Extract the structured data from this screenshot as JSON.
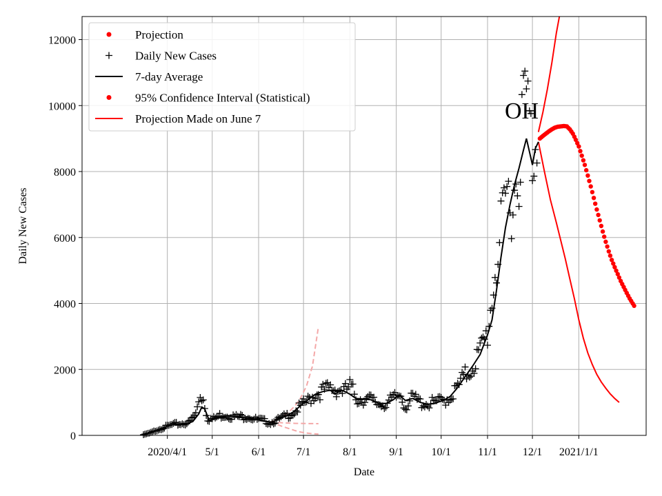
{
  "chart_data": {
    "type": "line",
    "title": "",
    "xlabel": "Date",
    "ylabel": "Daily New Cases",
    "annotation": "OH",
    "grid": true,
    "legend_position": "top-left",
    "xlim": [
      -26,
      351
    ],
    "ylim": [
      0,
      12700
    ],
    "xticks": [
      {
        "day": 31,
        "label": "2020/4/1"
      },
      {
        "day": 61,
        "label": "5/1"
      },
      {
        "day": 92,
        "label": "6/1"
      },
      {
        "day": 122,
        "label": "7/1"
      },
      {
        "day": 153,
        "label": "8/1"
      },
      {
        "day": 184,
        "label": "9/1"
      },
      {
        "day": 214,
        "label": "10/1"
      },
      {
        "day": 245,
        "label": "11/1"
      },
      {
        "day": 275,
        "label": "12/1"
      },
      {
        "day": 306,
        "label": "2021/1/1"
      }
    ],
    "yticks": [
      0,
      2000,
      4000,
      6000,
      8000,
      10000,
      12000
    ],
    "legend": [
      {
        "label": "Projection",
        "marker": "dot",
        "color": "#ff0000"
      },
      {
        "label": "Daily New Cases",
        "marker": "plus",
        "color": "#000000"
      },
      {
        "label": "7-day Average",
        "marker": "line",
        "color": "#000000"
      },
      {
        "label": "95% Confidence Interval (Statistical)",
        "marker": "dot",
        "color": "#ff0000"
      },
      {
        "label": "Projection Made on June 7",
        "marker": "line",
        "color": "#ff0000"
      }
    ],
    "colors": {
      "cases": "#000000",
      "avg": "#000000",
      "projection": "#ff0000",
      "june": "#f4a8a8",
      "grid": "#b0b0b0"
    },
    "daily_new_cases": {
      "anchors": [
        [
          15,
          20
        ],
        [
          20,
          80
        ],
        [
          25,
          180
        ],
        [
          30,
          260
        ],
        [
          35,
          330
        ],
        [
          40,
          350
        ],
        [
          45,
          380
        ],
        [
          50,
          650
        ],
        [
          53,
          1250
        ],
        [
          55,
          1100
        ],
        [
          58,
          500
        ],
        [
          62,
          500
        ],
        [
          66,
          600
        ],
        [
          70,
          620
        ],
        [
          75,
          560
        ],
        [
          80,
          560
        ],
        [
          85,
          580
        ],
        [
          90,
          480
        ],
        [
          95,
          450
        ],
        [
          100,
          380
        ],
        [
          105,
          470
        ],
        [
          110,
          580
        ],
        [
          115,
          680
        ],
        [
          120,
          870
        ],
        [
          125,
          1050
        ],
        [
          130,
          1250
        ],
        [
          135,
          1350
        ],
        [
          140,
          1420
        ],
        [
          145,
          1400
        ],
        [
          150,
          1350
        ],
        [
          153,
          1500
        ],
        [
          158,
          1100
        ],
        [
          162,
          1100
        ],
        [
          167,
          1080
        ],
        [
          172,
          960
        ],
        [
          177,
          950
        ],
        [
          182,
          1100
        ],
        [
          187,
          1250
        ],
        [
          190,
          850
        ],
        [
          195,
          1150
        ],
        [
          200,
          1000
        ],
        [
          205,
          950
        ],
        [
          210,
          1000
        ],
        [
          215,
          1050
        ],
        [
          220,
          1150
        ],
        [
          225,
          1450
        ],
        [
          230,
          1800
        ],
        [
          235,
          2100
        ],
        [
          240,
          2500
        ],
        [
          245,
          3100
        ],
        [
          248,
          4200
        ],
        [
          250,
          5000
        ],
        [
          253,
          5800
        ],
        [
          256,
          6500
        ],
        [
          258,
          7300
        ],
        [
          262,
          7200
        ],
        [
          265,
          8000
        ],
        [
          268,
          9300
        ],
        [
          270,
          10300
        ],
        [
          272,
          9800
        ],
        [
          275,
          8500
        ],
        [
          278,
          9200
        ]
      ],
      "amplitude": 0.18
    },
    "seven_day_average": [
      [
        15,
        20
      ],
      [
        25,
        180
      ],
      [
        30,
        260
      ],
      [
        35,
        330
      ],
      [
        40,
        350
      ],
      [
        45,
        370
      ],
      [
        48,
        420
      ],
      [
        52,
        650
      ],
      [
        54,
        860
      ],
      [
        56,
        800
      ],
      [
        59,
        450
      ],
      [
        63,
        500
      ],
      [
        68,
        580
      ],
      [
        72,
        600
      ],
      [
        76,
        560
      ],
      [
        80,
        540
      ],
      [
        85,
        560
      ],
      [
        90,
        490
      ],
      [
        95,
        440
      ],
      [
        100,
        400
      ],
      [
        105,
        480
      ],
      [
        110,
        580
      ],
      [
        115,
        700
      ],
      [
        120,
        900
      ],
      [
        125,
        1080
      ],
      [
        130,
        1250
      ],
      [
        135,
        1330
      ],
      [
        140,
        1370
      ],
      [
        143,
        1250
      ],
      [
        147,
        1380
      ],
      [
        150,
        1320
      ],
      [
        153,
        1250
      ],
      [
        157,
        1120
      ],
      [
        162,
        1100
      ],
      [
        167,
        1080
      ],
      [
        172,
        980
      ],
      [
        177,
        960
      ],
      [
        182,
        1080
      ],
      [
        186,
        1230
      ],
      [
        190,
        1060
      ],
      [
        195,
        1120
      ],
      [
        200,
        1000
      ],
      [
        205,
        940
      ],
      [
        210,
        980
      ],
      [
        215,
        1050
      ],
      [
        220,
        1180
      ],
      [
        225,
        1450
      ],
      [
        230,
        1780
      ],
      [
        235,
        2100
      ],
      [
        240,
        2450
      ],
      [
        245,
        3050
      ],
      [
        248,
        3500
      ],
      [
        251,
        4400
      ],
      [
        254,
        5400
      ],
      [
        257,
        6300
      ],
      [
        260,
        7000
      ],
      [
        263,
        7600
      ],
      [
        266,
        8100
      ],
      [
        269,
        8650
      ],
      [
        271,
        9000
      ],
      [
        273,
        8600
      ],
      [
        275,
        8200
      ],
      [
        277,
        8700
      ],
      [
        279,
        8900
      ]
    ],
    "projection": [
      [
        280,
        9000
      ],
      [
        282,
        9080
      ],
      [
        284,
        9150
      ],
      [
        286,
        9220
      ],
      [
        288,
        9280
      ],
      [
        290,
        9330
      ],
      [
        292,
        9360
      ],
      [
        294,
        9370
      ],
      [
        296,
        9380
      ],
      [
        298,
        9370
      ],
      [
        300,
        9280
      ],
      [
        302,
        9150
      ],
      [
        304,
        8960
      ],
      [
        306,
        8760
      ],
      [
        308,
        8480
      ],
      [
        310,
        8200
      ],
      [
        312,
        7880
      ],
      [
        314,
        7550
      ],
      [
        316,
        7200
      ],
      [
        318,
        6850
      ],
      [
        320,
        6520
      ],
      [
        322,
        6180
      ],
      [
        324,
        5870
      ],
      [
        326,
        5580
      ],
      [
        328,
        5320
      ],
      [
        330,
        5100
      ],
      [
        332,
        4890
      ],
      [
        334,
        4680
      ],
      [
        336,
        4500
      ],
      [
        338,
        4320
      ],
      [
        340,
        4150
      ],
      [
        342,
        4000
      ],
      [
        343,
        3930
      ]
    ],
    "confidence_interval_upper": [
      [
        279,
        9200
      ],
      [
        282,
        9800
      ],
      [
        285,
        10500
      ],
      [
        288,
        11300
      ],
      [
        291,
        12200
      ],
      [
        293,
        12700
      ]
    ],
    "confidence_interval_lower": [
      [
        279,
        8900
      ],
      [
        283,
        8000
      ],
      [
        287,
        7150
      ],
      [
        291,
        6450
      ],
      [
        294,
        5900
      ],
      [
        297,
        5350
      ],
      [
        300,
        4750
      ],
      [
        303,
        4150
      ],
      [
        306,
        3500
      ],
      [
        309,
        2950
      ],
      [
        312,
        2500
      ],
      [
        315,
        2150
      ],
      [
        318,
        1850
      ],
      [
        321,
        1620
      ],
      [
        324,
        1430
      ],
      [
        327,
        1260
      ],
      [
        330,
        1120
      ],
      [
        333,
        1000
      ]
    ],
    "june_projection_upper": [
      [
        100,
        410
      ],
      [
        104,
        470
      ],
      [
        108,
        560
      ],
      [
        112,
        700
      ],
      [
        116,
        880
      ],
      [
        120,
        1130
      ],
      [
        124,
        1500
      ],
      [
        128,
        2100
      ],
      [
        132,
        3300
      ]
    ],
    "june_projection_mid": [
      [
        100,
        410
      ],
      [
        108,
        380
      ],
      [
        116,
        365
      ],
      [
        124,
        360
      ],
      [
        132,
        355
      ]
    ],
    "june_projection_lower": [
      [
        100,
        410
      ],
      [
        104,
        340
      ],
      [
        108,
        270
      ],
      [
        112,
        210
      ],
      [
        116,
        150
      ],
      [
        120,
        100
      ],
      [
        124,
        70
      ],
      [
        128,
        50
      ],
      [
        132,
        40
      ]
    ]
  }
}
